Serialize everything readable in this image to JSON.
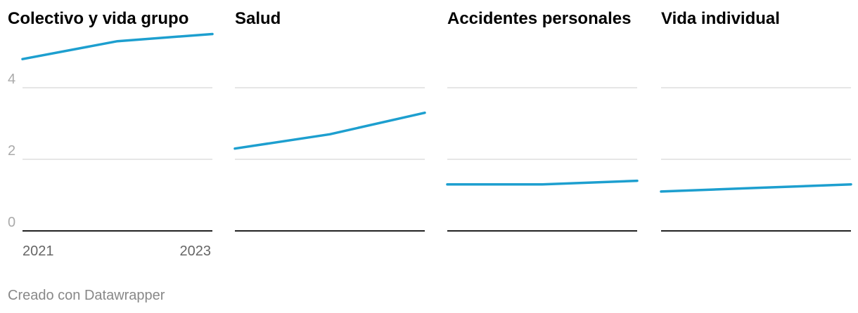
{
  "chart_data": {
    "type": "line",
    "x": [
      2021,
      2022,
      2023
    ],
    "x_tick_labels": [
      "2021",
      "2023"
    ],
    "y_ticks": [
      0,
      2,
      4
    ],
    "ylim": [
      0,
      5.4
    ],
    "grid": true,
    "color": "#1d9fcf",
    "panels": [
      {
        "title": "Colectivo y vida grupo",
        "values": [
          4.8,
          5.3,
          5.5
        ]
      },
      {
        "title": "Salud",
        "values": [
          2.3,
          2.7,
          3.3
        ]
      },
      {
        "title": "Accidentes personales",
        "values": [
          1.3,
          1.3,
          1.4
        ]
      },
      {
        "title": "Vida individual",
        "values": [
          1.1,
          1.2,
          1.3
        ]
      }
    ]
  },
  "footer": {
    "credit": "Creado con Datawrapper"
  }
}
